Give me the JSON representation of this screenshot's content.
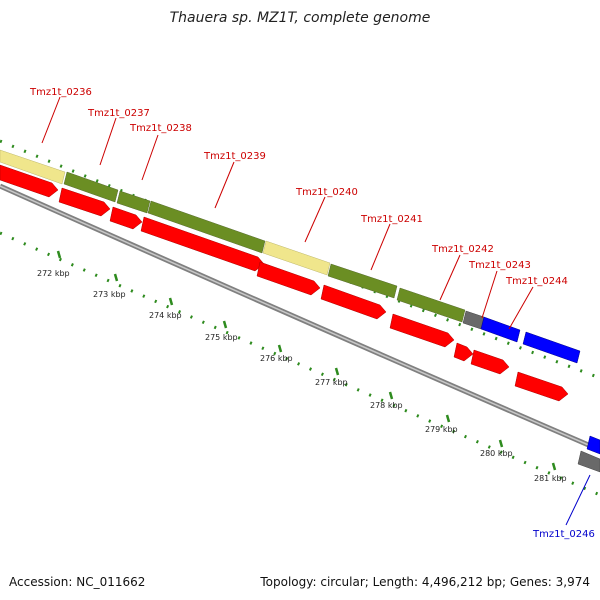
{
  "header": {
    "title": "Thauera sp. MZ1T, complete genome"
  },
  "footer": {
    "accession": "Accession: NC_011662",
    "summary": "Topology: circular; Length: 4,496,212 bp; Genes: 3,974"
  },
  "colors": {
    "cds": "#ff0000",
    "pale": "#f0e68c",
    "olive": "#6b8e23",
    "blue": "#0000ff",
    "gray": "#696969",
    "backbone": "#808080",
    "tick": "#2e8b1e",
    "label_red": "#cc0000",
    "label_blue": "#0000cc"
  },
  "scale_labels": [
    "272 kbp",
    "273 kbp",
    "274 kbp",
    "275 kbp",
    "276 kbp",
    "277 kbp",
    "278 kbp",
    "279 kbp",
    "280 kbp",
    "281 kbp"
  ],
  "gene_labels": [
    {
      "name": "Tmz1t_0236",
      "color": "label_red"
    },
    {
      "name": "Tmz1t_0237",
      "color": "label_red"
    },
    {
      "name": "Tmz1t_0238",
      "color": "label_red"
    },
    {
      "name": "Tmz1t_0239",
      "color": "label_red"
    },
    {
      "name": "Tmz1t_0240",
      "color": "label_red"
    },
    {
      "name": "Tmz1t_0241",
      "color": "label_red"
    },
    {
      "name": "Tmz1t_0242",
      "color": "label_red"
    },
    {
      "name": "Tmz1t_0243",
      "color": "label_red"
    },
    {
      "name": "Tmz1t_0244",
      "color": "label_red"
    },
    {
      "name": "Tmz1t_0246",
      "color": "label_blue"
    }
  ]
}
